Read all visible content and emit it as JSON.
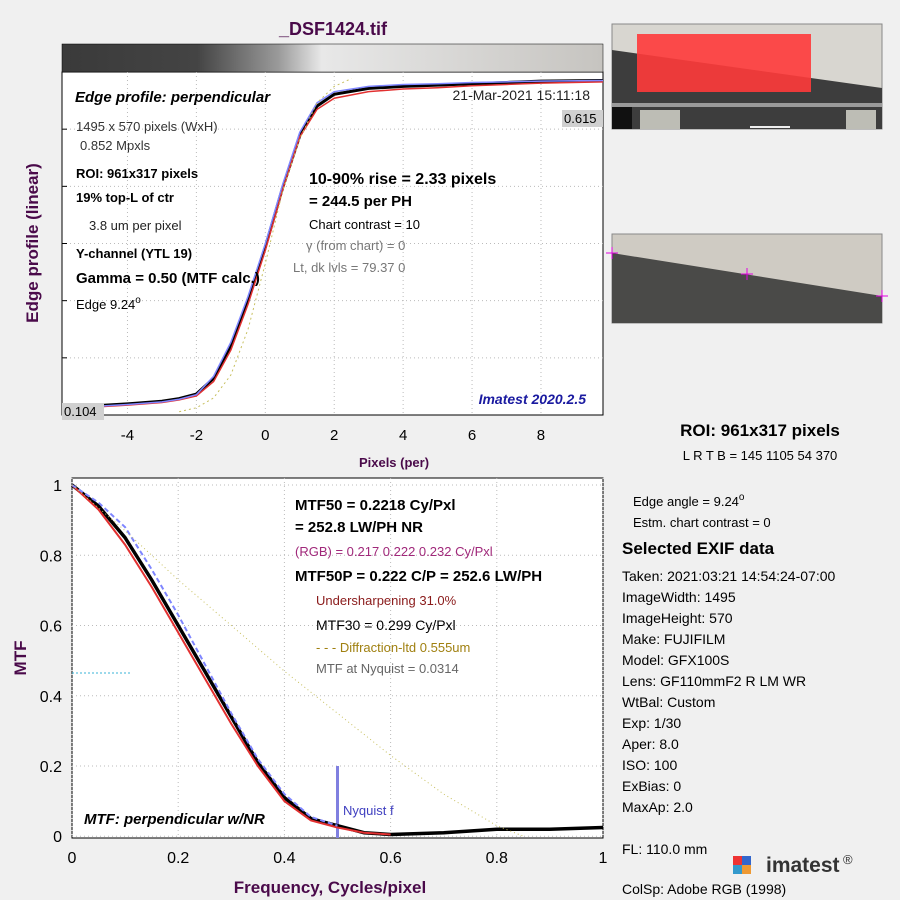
{
  "file_title": "_DSF1424.tif",
  "edge_panel": {
    "title": "Edge profile: perpendicular",
    "date": "21-Mar-2021 15:11:18",
    "size": "1495 x 570 pixels (WxH)",
    "mpxls": "0.852 Mpxls",
    "roi": "ROI:  961x317 pixels",
    "location": "19% top-L of ctr",
    "pitch": "3.8 um per pixel",
    "channel": "Y-channel  (YTL 19)",
    "gamma": "Gamma = 0.50 (MTF calc.)",
    "edge_prefix": "Edge  9.24",
    "degree_sign": "o",
    "rise": "10-90% rise = 2.33 pixels",
    "rise_ph": "=  244.5 per PH",
    "contrast": "Chart contrast = 10",
    "gamma_chart": "γ (from chart) =     0",
    "levels": "Lt, dk lvls = 79.37  0",
    "version": "Imatest 2020.2.5",
    "max_label": "0.615",
    "min_label": "0.104",
    "ylabel": "Edge profile (linear)",
    "xlabel": "Pixels (per)"
  },
  "mtf_panel": {
    "mtf50": "MTF50 = 0.2218 Cy/Pxl",
    "mtf50_lwph": "= 252.8 LW/PH  NR",
    "rgb": "(RGB) = 0.217  0.222  0.232 Cy/Pxl",
    "mtf50p": "MTF50P = 0.222 C/P = 252.6 LW/PH",
    "undersharp": "Undersharpening 31.0%",
    "mtf30": "MTF30 = 0.299 Cy/Pxl",
    "diffraction": "- - - Diffraction-ltd  0.555um",
    "nyquist_mtf": "MTF at Nyquist = 0.0314",
    "nyquist_label": "Nyquist f",
    "title": "MTF: perpendicular w/NR",
    "ylabel": "MTF",
    "xlabel": "Frequency, Cycles/pixel"
  },
  "right_panel": {
    "roi": "ROI:  961x317 pixels",
    "lrtb": "L R  T B = 145 1105  54 370",
    "edge_angle_prefix": "Edge angle = 9.24",
    "degree_sign": "o",
    "contrast": "Estm. chart contrast = 0",
    "exif_title": "Selected EXIF data",
    "exif": [
      "Taken: 2021:03:21 14:54:24-07:00",
      "ImageWidth:  1495",
      "ImageHeight:  570",
      "Make:  FUJIFILM",
      "Model:  GFX100S",
      "Lens:   GF110mmF2 R LM WR",
      "WtBal:  Custom",
      "Exp:    1/30",
      "Aper:   8.0",
      "ISO:    100",
      "ExBias:  0",
      "MaxAp:  2.0"
    ],
    "fl": "FL:      110.0 mm",
    "colsp": "ColSp:  Adobe RGB (1998)",
    "logo": "imatest",
    "logo_mark": "®"
  },
  "chart_data": [
    {
      "type": "line",
      "title": "Edge profile: perpendicular",
      "xlabel": "Pixels (per)",
      "ylabel": "Edge profile (linear)",
      "xlim": [
        -5.9,
        9.8
      ],
      "ylim": [
        0.099,
        0.622
      ],
      "x_ticks": [
        -4,
        -2,
        0,
        2,
        4,
        6,
        8
      ],
      "grid": true,
      "series": [
        {
          "color": "#000000",
          "x": [
            -5.9,
            -5,
            -4,
            -3,
            -2.5,
            -2,
            -1.5,
            -1,
            -0.5,
            0,
            0.5,
            1,
            1.5,
            2,
            3,
            4,
            5,
            6,
            7,
            8,
            9.8
          ],
          "y": [
            0.111,
            0.113,
            0.116,
            0.12,
            0.124,
            0.131,
            0.155,
            0.205,
            0.275,
            0.355,
            0.445,
            0.525,
            0.57,
            0.588,
            0.597,
            0.6,
            0.602,
            0.604,
            0.606,
            0.608,
            0.609
          ]
        },
        {
          "color": "#e23030",
          "x": [
            -5.9,
            -5,
            -4,
            -3,
            -2.5,
            -2,
            -1.5,
            -1,
            -0.5,
            0,
            0.5,
            1,
            1.5,
            2,
            3,
            4,
            5,
            6,
            7,
            8,
            9.8
          ],
          "y": [
            0.109,
            0.111,
            0.114,
            0.118,
            0.122,
            0.128,
            0.15,
            0.198,
            0.268,
            0.35,
            0.442,
            0.523,
            0.565,
            0.582,
            0.592,
            0.596,
            0.598,
            0.601,
            0.603,
            0.605,
            0.607
          ]
        },
        {
          "color": "#7f86ff",
          "x": [
            -5.9,
            -5,
            -4,
            -3,
            -2.5,
            -2,
            -1.5,
            -1,
            -0.5,
            0,
            0.5,
            1,
            1.5,
            2,
            3,
            4,
            5,
            6,
            7,
            8,
            9.8
          ],
          "y": [
            0.11,
            0.112,
            0.115,
            0.119,
            0.123,
            0.13,
            0.158,
            0.21,
            0.28,
            0.36,
            0.45,
            0.53,
            0.575,
            0.592,
            0.6,
            0.603,
            0.604,
            0.606,
            0.607,
            0.608,
            0.609
          ]
        },
        {
          "color": "#c8c060",
          "dash": true,
          "x": [
            -2.5,
            -2,
            -1.5,
            -1,
            -0.5,
            0,
            0.5,
            1,
            1.5,
            2,
            2.5
          ],
          "y": [
            0.104,
            0.11,
            0.125,
            0.16,
            0.23,
            0.33,
            0.44,
            0.52,
            0.575,
            0.6,
            0.612
          ]
        }
      ]
    },
    {
      "type": "line",
      "xlabel": "Frequency, Cycles/pixel",
      "ylabel": "MTF",
      "xlim": [
        0,
        1
      ],
      "ylim": [
        0,
        1.0
      ],
      "x_ticks": [
        0,
        0.2,
        0.4,
        0.6,
        0.8,
        1
      ],
      "y_ticks": [
        0,
        0.2,
        0.4,
        0.6,
        0.8,
        1
      ],
      "grid": true,
      "nyquist": 0.5,
      "series": [
        {
          "color": "#000000",
          "x": [
            0,
            0.05,
            0.1,
            0.15,
            0.2,
            0.25,
            0.3,
            0.35,
            0.4,
            0.45,
            0.5,
            0.55,
            0.6,
            0.7,
            0.8,
            0.9,
            1.0
          ],
          "y": [
            1.0,
            0.94,
            0.85,
            0.73,
            0.6,
            0.47,
            0.34,
            0.21,
            0.11,
            0.05,
            0.03,
            0.01,
            0.005,
            0.01,
            0.02,
            0.02,
            0.025
          ]
        },
        {
          "color": "#e23030",
          "x": [
            0,
            0.05,
            0.1,
            0.15,
            0.2,
            0.25,
            0.3,
            0.35,
            0.4,
            0.45,
            0.5,
            0.55,
            0.6
          ],
          "y": [
            1.0,
            0.93,
            0.83,
            0.71,
            0.58,
            0.45,
            0.32,
            0.2,
            0.1,
            0.045,
            0.025,
            0.01,
            0.005
          ]
        },
        {
          "color": "#7f86ff",
          "dashed": true,
          "x": [
            0,
            0.05,
            0.1,
            0.15,
            0.2,
            0.25,
            0.3,
            0.35,
            0.4,
            0.45,
            0.5
          ],
          "y": [
            1.0,
            0.95,
            0.88,
            0.76,
            0.63,
            0.49,
            0.35,
            0.22,
            0.12,
            0.055,
            0.03
          ]
        },
        {
          "color": "#c8c060",
          "dotted": true,
          "x": [
            0,
            0.1,
            0.2,
            0.3,
            0.4,
            0.5,
            0.6,
            0.7,
            0.8,
            0.85
          ],
          "y": [
            1.0,
            0.87,
            0.73,
            0.6,
            0.47,
            0.35,
            0.23,
            0.12,
            0.03,
            0.0
          ]
        }
      ]
    }
  ]
}
